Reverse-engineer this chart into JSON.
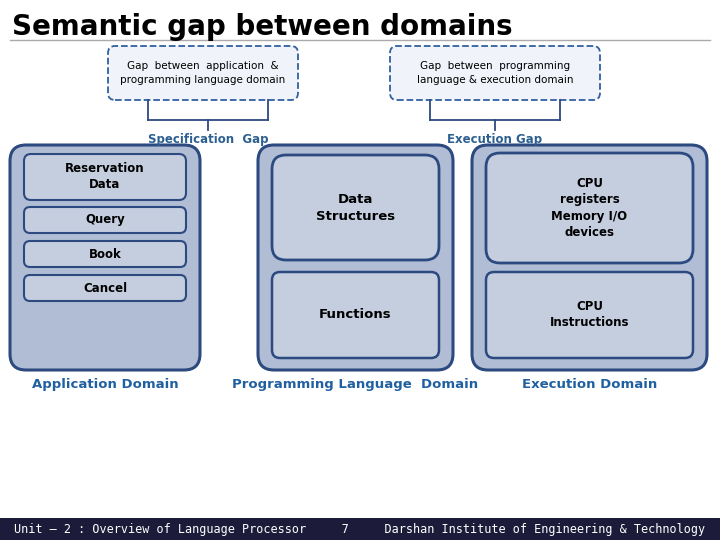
{
  "title": "Semantic gap between domains",
  "title_fontsize": 20,
  "title_color": "#000000",
  "bg_color": "#ffffff",
  "footer_bg": "#1c1c3a",
  "footer_text": "Unit – 2 : Overview of Language Processor     7     Darshan Institute of Engineering & Technology",
  "footer_color": "#ffffff",
  "footer_fontsize": 8.5,
  "box_fill": "#b0bdd4",
  "box_edge": "#2c4a80",
  "inner_fill": "#c5cedf",
  "inner_edge": "#2c4a80",
  "dashed_fill": "#f0f4fa",
  "dashed_edge": "#3060a0",
  "gap_box1_text": "Gap  between  application  &\nprogramming language domain",
  "gap_box2_text": "Gap  between  programming\nlanguage & execution domain",
  "spec_gap_text": "Specification  Gap",
  "exec_gap_text": "Execution Gap",
  "app_domain_label": "Application Domain",
  "prog_domain_label": "Programming Language  Domain",
  "exec_domain_label": "Execution Domain",
  "app_items": [
    "Reservation\nData",
    "Query",
    "Book",
    "Cancel"
  ],
  "prog_items": [
    "Data\nStructures",
    "Functions"
  ],
  "exec_items": [
    "CPU\nregisters\nMemory I/O\ndevices",
    "CPU\nInstructions"
  ],
  "bracket_color": "#2c4a80",
  "gap_label_color": "#2c6090",
  "label_color": "#2060a0",
  "label_fontsize": 9.5,
  "sep_line_color": "#aaaaaa"
}
